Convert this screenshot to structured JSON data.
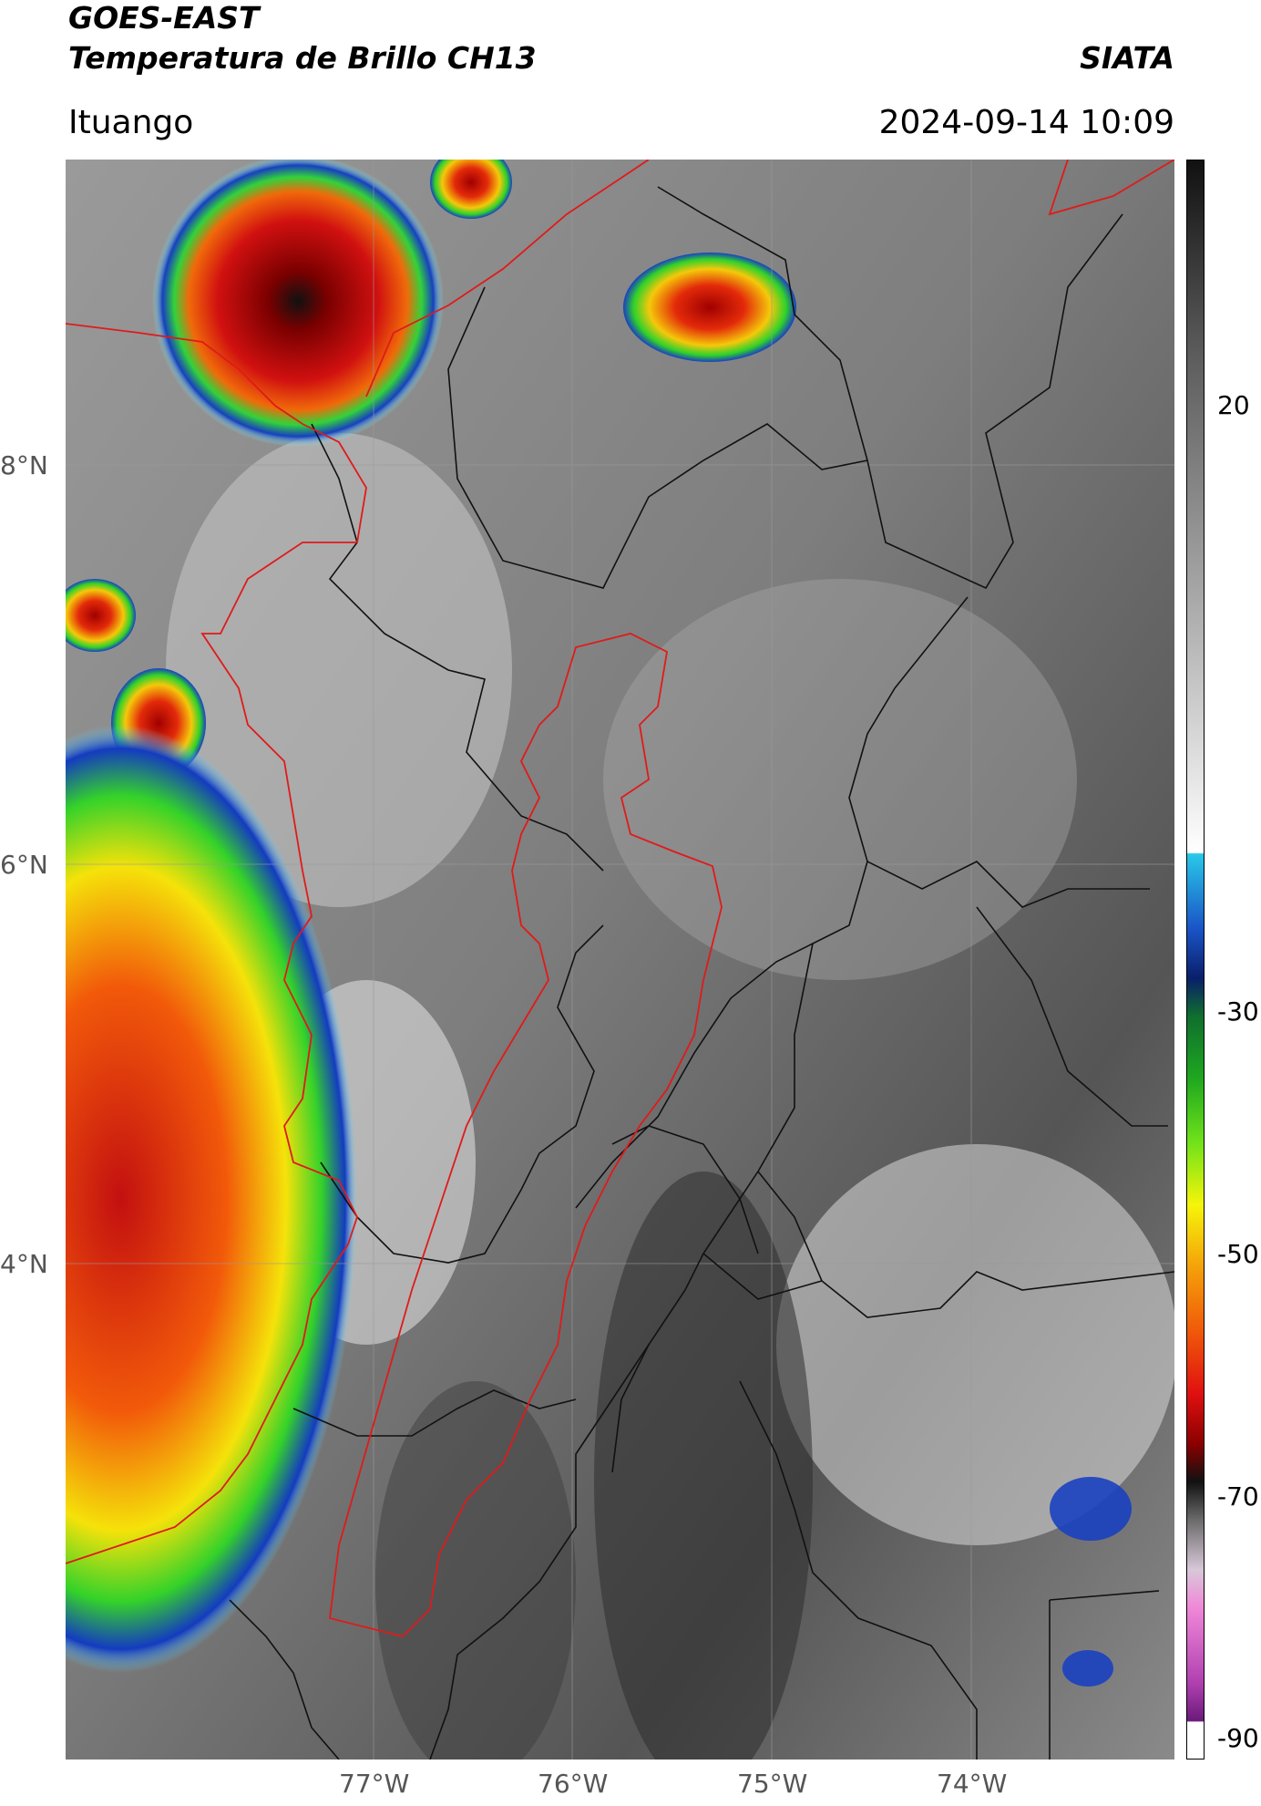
{
  "header": {
    "satellite": "GOES-EAST",
    "product": "Temperatura de Brillo CH13",
    "org": "SIATA",
    "location": "Ituango",
    "timestamp": "2024-09-14 10:09"
  },
  "axes": {
    "lat_labels": [
      "8°N",
      "6°N",
      "4°N"
    ],
    "lon_labels": [
      "77°W",
      "76°W",
      "75°W",
      "74°W"
    ]
  },
  "colorbar": {
    "ticks": [
      "20",
      "-30",
      "-50",
      "-70",
      "-90"
    ],
    "gradient": [
      {
        "v": 35,
        "c": "#111111"
      },
      {
        "v": 20,
        "c": "#5a5a5a"
      },
      {
        "v": 0,
        "c": "#a9a9a9"
      },
      {
        "v": -15,
        "c": "#e9e9e9"
      },
      {
        "v": -20,
        "c": "#ffffff"
      },
      {
        "v": -20.1,
        "c": "#29c8e8"
      },
      {
        "v": -26,
        "c": "#1a55c8"
      },
      {
        "v": -30,
        "c": "#0a1f6a"
      },
      {
        "v": -33,
        "c": "#0f6e2e"
      },
      {
        "v": -38,
        "c": "#1fa81f"
      },
      {
        "v": -43,
        "c": "#6fe21a"
      },
      {
        "v": -48,
        "c": "#f5f50a"
      },
      {
        "v": -53,
        "c": "#f5a00a"
      },
      {
        "v": -58,
        "c": "#f05a0a"
      },
      {
        "v": -63,
        "c": "#e01010"
      },
      {
        "v": -67,
        "c": "#8a0000"
      },
      {
        "v": -70,
        "c": "#111111"
      },
      {
        "v": -73,
        "c": "#6a6a6a"
      },
      {
        "v": -77,
        "c": "#d8c8d8"
      },
      {
        "v": -80,
        "c": "#f088d8"
      },
      {
        "v": -86,
        "c": "#b040b0"
      },
      {
        "v": -89,
        "c": "#6a1a7a"
      },
      {
        "v": -89.1,
        "c": "#ffffff"
      },
      {
        "v": -92,
        "c": "#ffffff"
      }
    ]
  },
  "colors": {
    "background": "#808080",
    "cold_core": "#b00000",
    "outline_red": "#e01a1a",
    "outline_black": "#111111"
  }
}
